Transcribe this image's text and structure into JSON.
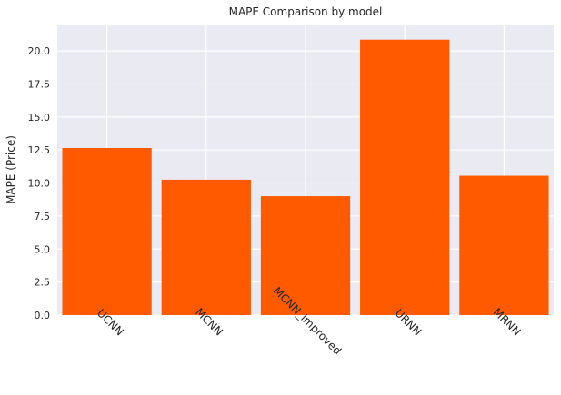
{
  "chart_data": {
    "type": "bar",
    "title": "MAPE Comparison by model",
    "xlabel": "",
    "ylabel": "MAPE (Price)",
    "categories": [
      "UCNN",
      "MCNN",
      "MCNN_improved",
      "URNN",
      "MRNN"
    ],
    "values": [
      12.65,
      10.25,
      9.0,
      20.85,
      10.55
    ],
    "ylim": [
      0,
      22.0
    ],
    "yticks": [
      "0.0",
      "2.5",
      "5.0",
      "7.5",
      "10.0",
      "12.5",
      "15.0",
      "17.5",
      "20.0"
    ],
    "ytick_values": [
      0,
      2.5,
      5,
      7.5,
      10,
      12.5,
      15,
      17.5,
      20
    ],
    "grid": true,
    "bar_color": "#ff5a00",
    "background_color": "#eaeaf2",
    "grid_color": "#ffffff"
  }
}
